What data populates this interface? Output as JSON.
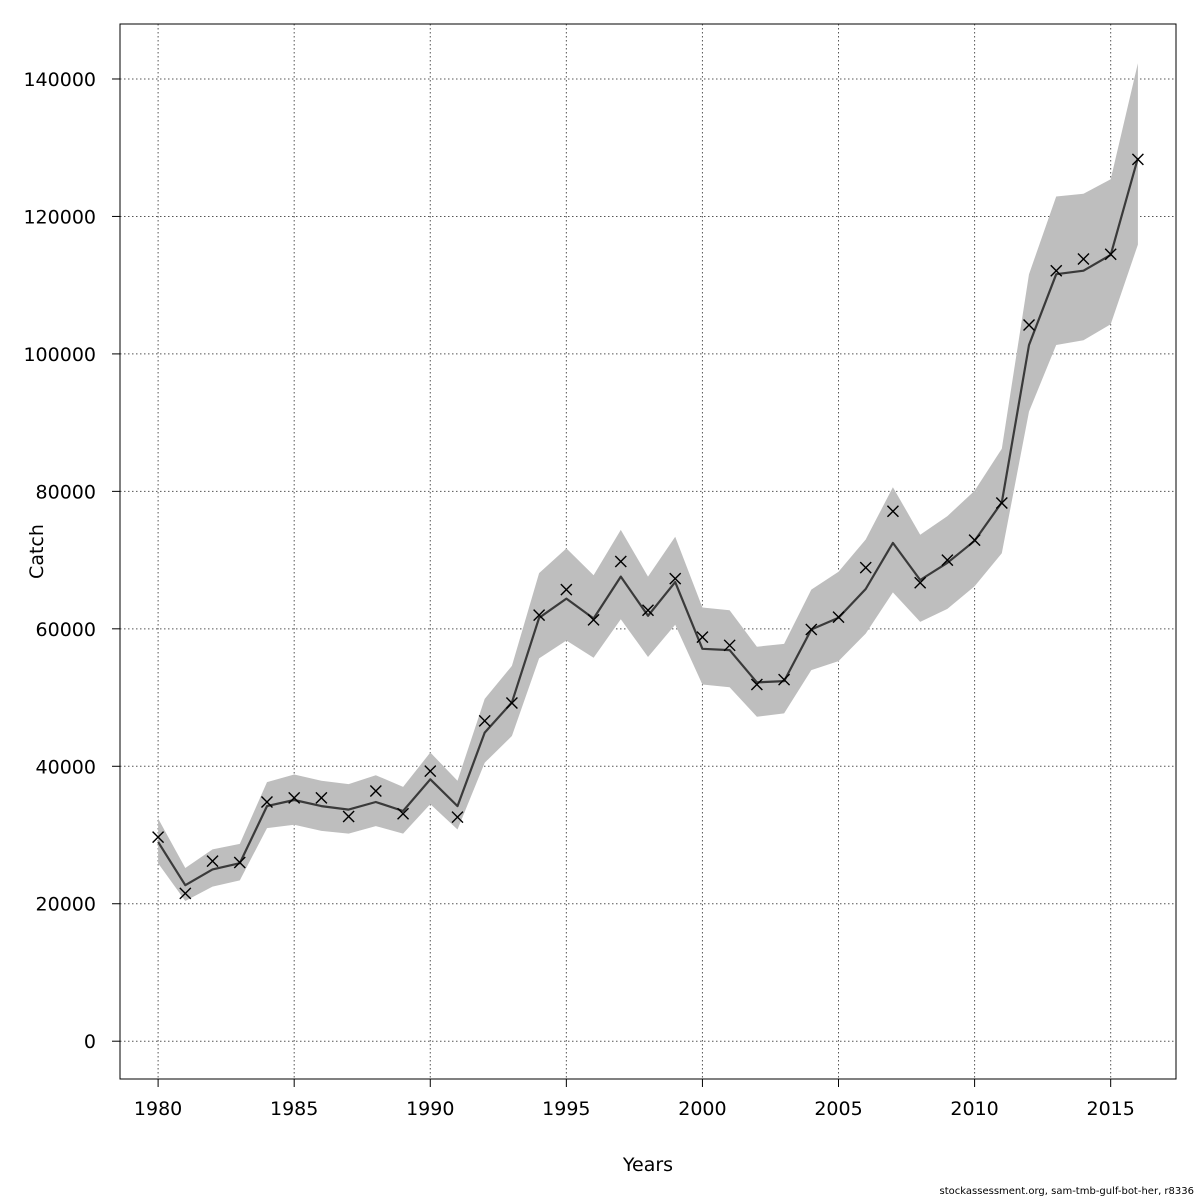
{
  "chart_data": {
    "type": "line",
    "title": "",
    "xlabel": "Years",
    "ylabel": "Catch",
    "xlim": [
      1978.6,
      2017.4
    ],
    "ylim": [
      -5500,
      148000
    ],
    "x_ticks": [
      1980,
      1985,
      1990,
      1995,
      2000,
      2005,
      2010,
      2015
    ],
    "y_ticks": [
      0,
      20000,
      40000,
      60000,
      80000,
      100000,
      120000,
      140000
    ],
    "grid": true,
    "colors": {
      "band": "#bebebe",
      "line": "#3a3a3a",
      "marker": "#000000",
      "grid": "#555555"
    },
    "years": [
      1980,
      1981,
      1982,
      1983,
      1984,
      1985,
      1986,
      1987,
      1988,
      1989,
      1990,
      1991,
      1992,
      1993,
      1994,
      1995,
      1996,
      1997,
      1998,
      1999,
      2000,
      2001,
      2002,
      2003,
      2004,
      2005,
      2006,
      2007,
      2008,
      2009,
      2010,
      2011,
      2012,
      2013,
      2014,
      2015,
      2016
    ],
    "series": [
      {
        "kind": "estimate",
        "values": [
          29000,
          22700,
          25000,
          25900,
          34200,
          35100,
          34200,
          33700,
          34800,
          33500,
          38100,
          34200,
          44900,
          49300,
          61600,
          64400,
          61500,
          67600,
          61900,
          66800,
          57100,
          56900,
          52200,
          52400,
          59900,
          61600,
          65800,
          72500,
          67100,
          69600,
          72800,
          78400,
          101300,
          111600,
          112100,
          114400,
          128500
        ]
      },
      {
        "kind": "upper",
        "values": [
          32400,
          25200,
          27900,
          28700,
          37700,
          38800,
          37900,
          37400,
          38700,
          37000,
          42000,
          37900,
          49800,
          54600,
          68100,
          71700,
          67800,
          74400,
          67600,
          73400,
          63100,
          62700,
          57400,
          57800,
          65700,
          68300,
          73000,
          80600,
          73700,
          76400,
          80100,
          86200,
          111600,
          122900,
          123300,
          125400,
          142300
        ]
      },
      {
        "kind": "lower",
        "values": [
          25900,
          20400,
          22500,
          23400,
          31000,
          31500,
          30600,
          30200,
          31300,
          30200,
          34500,
          30800,
          40500,
          44400,
          55700,
          58300,
          55800,
          61400,
          55900,
          60600,
          51900,
          51500,
          47200,
          47700,
          54000,
          55300,
          59300,
          65300,
          61000,
          62900,
          66200,
          71000,
          91600,
          101300,
          102000,
          104300,
          115900
        ]
      },
      {
        "kind": "observed",
        "values": [
          29700,
          21500,
          26200,
          26000,
          34800,
          35400,
          35400,
          32700,
          36400,
          33100,
          39300,
          32600,
          46600,
          49200,
          62000,
          65700,
          61300,
          69800,
          62700,
          67300,
          58800,
          57600,
          51900,
          52600,
          59900,
          61700,
          68900,
          77100,
          66700,
          70000,
          72900,
          78300,
          104200,
          112100,
          113800,
          114500,
          128300
        ]
      }
    ]
  },
  "footer": {
    "credit": "stockassessment.org, sam-tmb-gulf-bot-her, r8336"
  }
}
